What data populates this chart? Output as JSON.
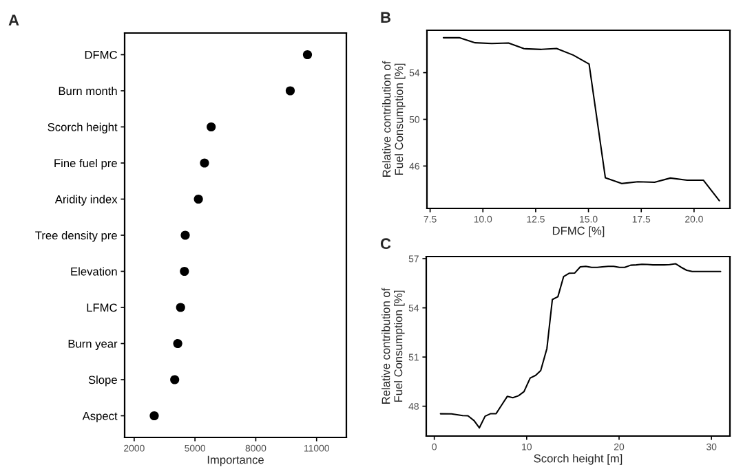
{
  "chart_data": [
    {
      "type": "scatter",
      "title": "A",
      "xlabel": "Importance",
      "orientation": "horizontal",
      "categories": [
        "DFMC",
        "Burn month",
        "Scorch height",
        "Fine fuel pre",
        "Aridity index",
        "Tree density pre",
        "Elevation",
        "LFMC",
        "Burn year",
        "Slope",
        "Aspect"
      ],
      "series": [
        {
          "color": "#000000",
          "values": [
            10550,
            9700,
            5800,
            5470,
            5170,
            4520,
            4480,
            4290,
            4150,
            4000,
            2990
          ]
        }
      ],
      "xlim": [
        1530,
        12470
      ],
      "xticks": [
        2000,
        5000,
        8000,
        11000
      ],
      "marker": "circle",
      "grid": false
    },
    {
      "type": "line",
      "title": "B",
      "xlabel": "DFMC [%]",
      "ylabel": "Relative contribution of\nFuel Consumption [%]",
      "x": [
        8.13,
        8.88,
        9.63,
        10.42,
        11.21,
        11.95,
        12.77,
        13.49,
        14.28,
        15.03,
        15.8,
        16.57,
        17.34,
        18.13,
        18.88,
        19.67,
        20.44,
        21.2
      ],
      "series": [
        {
          "color": "#000000",
          "values": [
            56.99,
            56.99,
            56.56,
            56.5,
            56.54,
            56.05,
            55.99,
            56.07,
            55.5,
            54.74,
            44.99,
            44.5,
            44.65,
            44.61,
            44.97,
            44.79,
            44.79,
            43.03
          ]
        }
      ],
      "xlim": [
        7.35,
        21.7
      ],
      "xticks": [
        7.5,
        {
          "value": 10,
          "label": "10.0"
        },
        12.5,
        {
          "value": 15,
          "label": "15.0"
        },
        17.5,
        {
          "value": 20,
          "label": "20.0"
        }
      ],
      "ylim": [
        42.37,
        57.63
      ],
      "yticks": [
        46,
        50,
        54
      ],
      "marker": "none",
      "line_style": "solid",
      "grid": false
    },
    {
      "type": "line",
      "title": "C",
      "xlabel": "Scorch height [m]",
      "ylabel": "Relative contribution of\nFuel Consumption [%]",
      "x": [
        0.67,
        1.86,
        3.07,
        3.64,
        4.31,
        4.88,
        5.5,
        6.07,
        6.69,
        7.3,
        7.9,
        8.5,
        9.12,
        9.71,
        10.38,
        10.97,
        11.52,
        12.19,
        12.78,
        13.38,
        14.0,
        14.59,
        15.19,
        15.8,
        16.4,
        17.02,
        17.64,
        18.18,
        18.82,
        19.42,
        20.04,
        20.61,
        21.25,
        21.87,
        22.47,
        23.06,
        23.66,
        24.28,
        24.87,
        25.47,
        26.11,
        26.7,
        27.32,
        27.92,
        30.99
      ],
      "series": [
        {
          "color": "#000000",
          "values": [
            47.54,
            47.53,
            47.43,
            47.42,
            47.12,
            46.68,
            47.39,
            47.54,
            47.55,
            48.08,
            48.6,
            48.52,
            48.64,
            48.89,
            49.72,
            49.88,
            50.18,
            51.52,
            54.51,
            54.68,
            55.91,
            56.11,
            56.12,
            56.5,
            56.53,
            56.47,
            56.47,
            56.5,
            56.53,
            56.53,
            56.47,
            56.47,
            56.6,
            56.62,
            56.66,
            56.65,
            56.62,
            56.62,
            56.62,
            56.64,
            56.69,
            56.48,
            56.29,
            56.22,
            56.22
          ]
        }
      ],
      "xlim": [
        -0.87,
        32.0
      ],
      "xticks": [
        0,
        10,
        20,
        30
      ],
      "ylim": [
        46.18,
        57.13
      ],
      "yticks": [
        48,
        51,
        54,
        57
      ],
      "marker": "none",
      "line_style": "solid",
      "grid": false
    }
  ]
}
